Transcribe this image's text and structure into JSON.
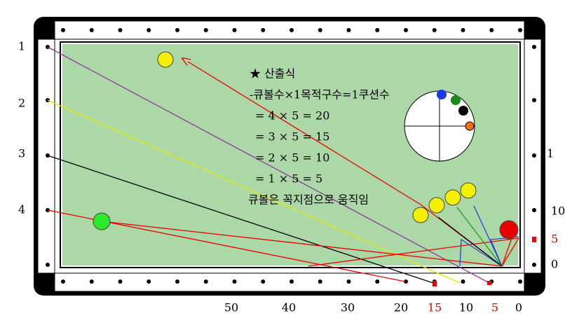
{
  "formula": {
    "title": "★ 산출식",
    "lines": [
      "-큐볼수×1목적구수=1쿠션수",
      "= 4 × 5 = 20",
      "= 3 × 5 = 15",
      "= 2 × 5 = 10",
      "= 1 × 5 =   5",
      "큐볼은 꼭지점으로 움직임"
    ]
  },
  "left_labels": [
    "1",
    "2",
    "3",
    "4"
  ],
  "right_labels": [
    "1",
    "10",
    "5",
    "0"
  ],
  "bottom_labels": [
    "50",
    "40",
    "30",
    "20",
    "15",
    "10",
    "5",
    "0"
  ]
}
